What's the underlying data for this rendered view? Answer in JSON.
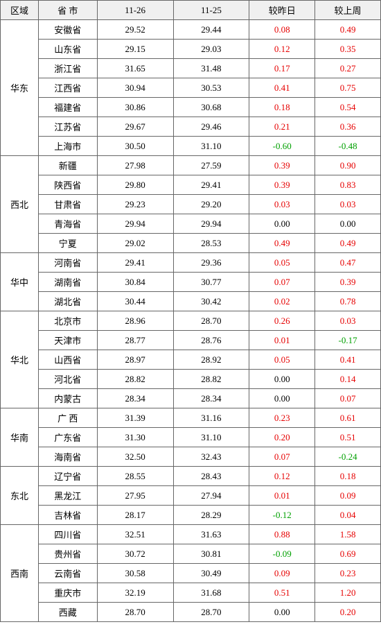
{
  "headers": {
    "region": "区域",
    "province": "省 市",
    "date1": "11-26",
    "date2": "11-25",
    "vs_day": "较昨日",
    "vs_week": "较上周"
  },
  "colors": {
    "positive": "#e60000",
    "negative": "#00a000",
    "neutral": "#000000",
    "header_bg": "#f0f0f0",
    "border": "#666666"
  },
  "groups": [
    {
      "region": "华东",
      "rows": [
        {
          "province": "安徽省",
          "d1": "29.52",
          "d2": "29.44",
          "day": "0.08",
          "week": "0.49"
        },
        {
          "province": "山东省",
          "d1": "29.15",
          "d2": "29.03",
          "day": "0.12",
          "week": "0.35"
        },
        {
          "province": "浙江省",
          "d1": "31.65",
          "d2": "31.48",
          "day": "0.17",
          "week": "0.27"
        },
        {
          "province": "江西省",
          "d1": "30.94",
          "d2": "30.53",
          "day": "0.41",
          "week": "0.75"
        },
        {
          "province": "福建省",
          "d1": "30.86",
          "d2": "30.68",
          "day": "0.18",
          "week": "0.54"
        },
        {
          "province": "江苏省",
          "d1": "29.67",
          "d2": "29.46",
          "day": "0.21",
          "week": "0.36"
        },
        {
          "province": "上海市",
          "d1": "30.50",
          "d2": "31.10",
          "day": "-0.60",
          "week": "-0.48"
        }
      ]
    },
    {
      "region": "西北",
      "rows": [
        {
          "province": "新疆",
          "d1": "27.98",
          "d2": "27.59",
          "day": "0.39",
          "week": "0.90"
        },
        {
          "province": "陕西省",
          "d1": "29.80",
          "d2": "29.41",
          "day": "0.39",
          "week": "0.83"
        },
        {
          "province": "甘肃省",
          "d1": "29.23",
          "d2": "29.20",
          "day": "0.03",
          "week": "0.03"
        },
        {
          "province": "青海省",
          "d1": "29.94",
          "d2": "29.94",
          "day": "0.00",
          "week": "0.00"
        },
        {
          "province": "宁夏",
          "d1": "29.02",
          "d2": "28.53",
          "day": "0.49",
          "week": "0.49"
        }
      ]
    },
    {
      "region": "华中",
      "rows": [
        {
          "province": "河南省",
          "d1": "29.41",
          "d2": "29.36",
          "day": "0.05",
          "week": "0.47"
        },
        {
          "province": "湖南省",
          "d1": "30.84",
          "d2": "30.77",
          "day": "0.07",
          "week": "0.39"
        },
        {
          "province": "湖北省",
          "d1": "30.44",
          "d2": "30.42",
          "day": "0.02",
          "week": "0.78"
        }
      ]
    },
    {
      "region": "华北",
      "rows": [
        {
          "province": "北京市",
          "d1": "28.96",
          "d2": "28.70",
          "day": "0.26",
          "week": "0.03"
        },
        {
          "province": "天津市",
          "d1": "28.77",
          "d2": "28.76",
          "day": "0.01",
          "week": "-0.17"
        },
        {
          "province": "山西省",
          "d1": "28.97",
          "d2": "28.92",
          "day": "0.05",
          "week": "0.41"
        },
        {
          "province": "河北省",
          "d1": "28.82",
          "d2": "28.82",
          "day": "0.00",
          "week": "0.14"
        },
        {
          "province": "内蒙古",
          "d1": "28.34",
          "d2": "28.34",
          "day": "0.00",
          "week": "0.07"
        }
      ]
    },
    {
      "region": "华南",
      "rows": [
        {
          "province": "广 西",
          "d1": "31.39",
          "d2": "31.16",
          "day": "0.23",
          "week": "0.61"
        },
        {
          "province": "广东省",
          "d1": "31.30",
          "d2": "31.10",
          "day": "0.20",
          "week": "0.51"
        },
        {
          "province": "海南省",
          "d1": "32.50",
          "d2": "32.43",
          "day": "0.07",
          "week": "-0.24"
        }
      ]
    },
    {
      "region": "东北",
      "rows": [
        {
          "province": "辽宁省",
          "d1": "28.55",
          "d2": "28.43",
          "day": "0.12",
          "week": "0.18"
        },
        {
          "province": "黑龙江",
          "d1": "27.95",
          "d2": "27.94",
          "day": "0.01",
          "week": "0.09"
        },
        {
          "province": "吉林省",
          "d1": "28.17",
          "d2": "28.29",
          "day": "-0.12",
          "week": "0.04"
        }
      ]
    },
    {
      "region": "西南",
      "rows": [
        {
          "province": "四川省",
          "d1": "32.51",
          "d2": "31.63",
          "day": "0.88",
          "week": "1.58"
        },
        {
          "province": "贵州省",
          "d1": "30.72",
          "d2": "30.81",
          "day": "-0.09",
          "week": "0.69"
        },
        {
          "province": "云南省",
          "d1": "30.58",
          "d2": "30.49",
          "day": "0.09",
          "week": "0.23"
        },
        {
          "province": "重庆市",
          "d1": "32.19",
          "d2": "31.68",
          "day": "0.51",
          "week": "1.20"
        },
        {
          "province": "西藏",
          "d1": "28.70",
          "d2": "28.70",
          "day": "0.00",
          "week": "0.20"
        }
      ]
    }
  ]
}
